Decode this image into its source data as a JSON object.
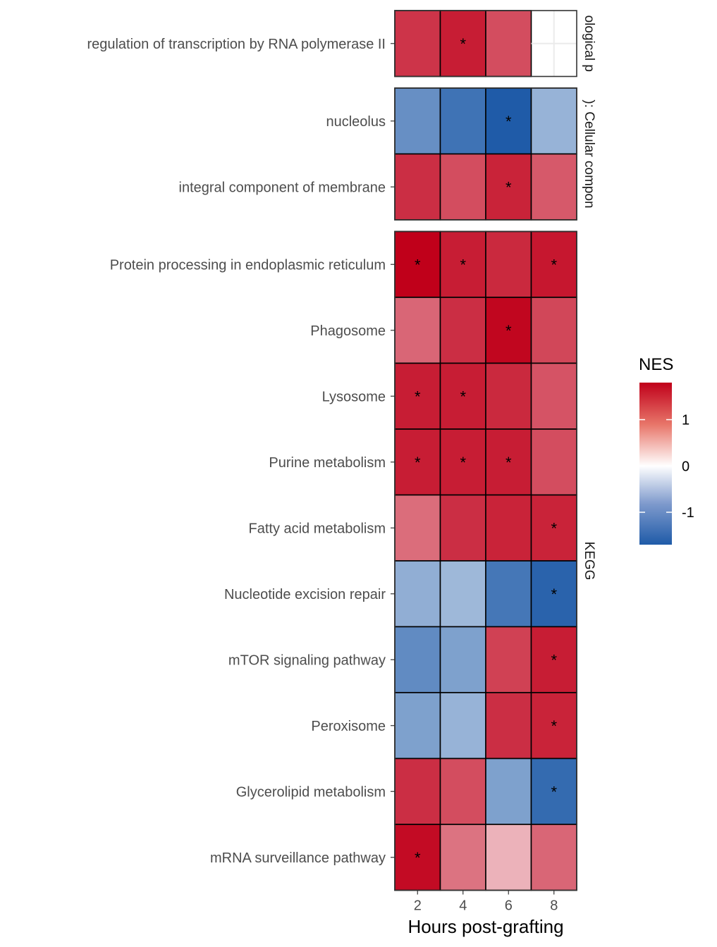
{
  "chart_data": {
    "type": "heatmap",
    "xlabel": "Hours post-grafting",
    "x": [
      "2",
      "4",
      "6",
      "8"
    ],
    "legend": {
      "title": "NES",
      "ticks": [
        "1",
        "0",
        "-1"
      ],
      "min": -1.7,
      "max": 1.8,
      "colors": {
        "low": "#1f5ba8",
        "mid": "#ffffff",
        "high": "#c0001a"
      }
    },
    "panels": [
      {
        "strip": "ological p",
        "rows": [
          {
            "label": "regulation of transcription by RNA polymerase II",
            "values": [
              1.35,
              1.55,
              1.15,
              null
            ],
            "sig": [
              false,
              true,
              false,
              false
            ]
          }
        ]
      },
      {
        "strip": "): Cellular compon",
        "rows": [
          {
            "label": "nucleolus",
            "values": [
              -1.05,
              -1.4,
              -1.7,
              -0.65
            ],
            "sig": [
              false,
              false,
              true,
              false
            ]
          },
          {
            "label": "integral component of membrane",
            "values": [
              1.4,
              1.15,
              1.5,
              1.05
            ],
            "sig": [
              false,
              false,
              true,
              false
            ]
          }
        ]
      },
      {
        "strip": "KEGG",
        "rows": [
          {
            "label": "Protein processing in endoplasmic reticulum",
            "values": [
              1.8,
              1.55,
              1.45,
              1.6
            ],
            "sig": [
              true,
              true,
              false,
              true
            ]
          },
          {
            "label": "Phagosome",
            "values": [
              0.95,
              1.4,
              1.75,
              1.2
            ],
            "sig": [
              false,
              false,
              true,
              false
            ]
          },
          {
            "label": "Lysosome",
            "values": [
              1.55,
              1.55,
              1.45,
              1.1
            ],
            "sig": [
              true,
              true,
              false,
              false
            ]
          },
          {
            "label": "Purine metabolism",
            "values": [
              1.55,
              1.55,
              1.55,
              1.15
            ],
            "sig": [
              true,
              true,
              true,
              false
            ]
          },
          {
            "label": "Fatty acid metabolism",
            "values": [
              0.9,
              1.4,
              1.5,
              1.5
            ],
            "sig": [
              false,
              false,
              false,
              true
            ]
          },
          {
            "label": "Nucleotide excision repair",
            "values": [
              -0.7,
              -0.6,
              -1.35,
              -1.6
            ],
            "sig": [
              false,
              false,
              false,
              true
            ]
          },
          {
            "label": "mTOR signaling pathway",
            "values": [
              -1.1,
              -0.85,
              1.25,
              1.55
            ],
            "sig": [
              false,
              false,
              false,
              true
            ]
          },
          {
            "label": "Peroxisome",
            "values": [
              -0.85,
              -0.65,
              1.4,
              1.5
            ],
            "sig": [
              false,
              false,
              false,
              true
            ]
          },
          {
            "label": "Glycerolipid metabolism",
            "values": [
              1.4,
              1.15,
              -0.85,
              -1.5
            ],
            "sig": [
              false,
              false,
              false,
              true
            ]
          },
          {
            "label": "mRNA surveillance pathway",
            "values": [
              1.7,
              0.85,
              0.4,
              0.95
            ],
            "sig": [
              true,
              false,
              false,
              false
            ]
          }
        ]
      }
    ]
  }
}
